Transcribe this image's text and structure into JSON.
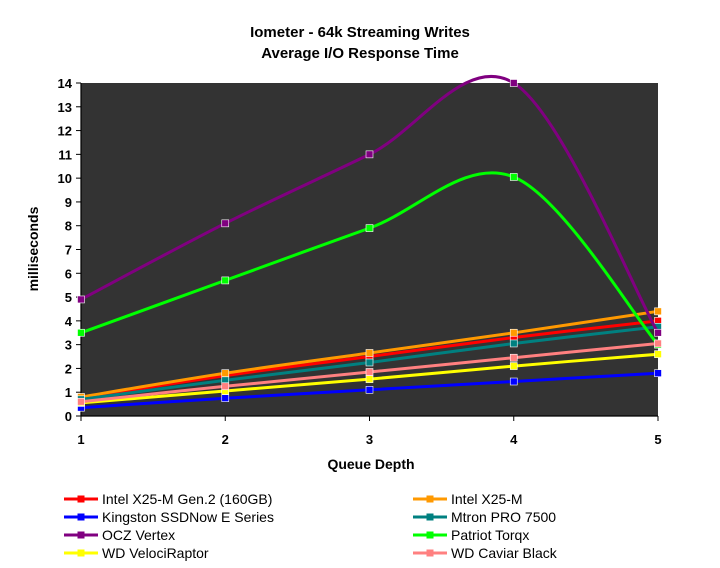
{
  "chart_data": {
    "type": "line",
    "title": "Iometer - 64k Streaming Writes",
    "subtitle": "Average I/O Response Time",
    "xlabel": "Queue Depth",
    "ylabel": "milliseconds",
    "x": [
      1,
      2,
      3,
      4,
      5
    ],
    "xticks": [
      "1",
      "2",
      "3",
      "4",
      "5"
    ],
    "ylim": [
      0,
      14
    ],
    "yticks": [
      "0",
      "1",
      "2",
      "3",
      "4",
      "5",
      "6",
      "7",
      "8",
      "9",
      "10",
      "11",
      "12",
      "13",
      "14"
    ],
    "grid": false,
    "legend_position": "bottom",
    "plot_background": "#333333",
    "series": [
      {
        "name": "Intel X25-M Gen.2 (160GB)",
        "color": "#ff0000",
        "values": [
          0.75,
          1.7,
          2.5,
          3.3,
          4.0
        ]
      },
      {
        "name": "Intel X25-M",
        "color": "#ff9900",
        "values": [
          0.8,
          1.8,
          2.65,
          3.5,
          4.4
        ]
      },
      {
        "name": "Kingston SSDNow E Series",
        "color": "#0000ff",
        "values": [
          0.35,
          0.75,
          1.1,
          1.45,
          1.8
        ]
      },
      {
        "name": "Mtron PRO 7500",
        "color": "#008080",
        "values": [
          0.7,
          1.5,
          2.25,
          3.05,
          3.75
        ]
      },
      {
        "name": "OCZ Vertex",
        "color": "#800080",
        "values": [
          4.9,
          8.1,
          11.0,
          14.0,
          3.5
        ]
      },
      {
        "name": "Patriot Torqx",
        "color": "#00ff00",
        "values": [
          3.5,
          5.7,
          7.9,
          10.05,
          3.0
        ]
      },
      {
        "name": "WD VelociRaptor",
        "color": "#ffff00",
        "values": [
          0.55,
          1.05,
          1.55,
          2.1,
          2.6
        ]
      },
      {
        "name": "WD Caviar Black",
        "color": "#ff8080",
        "values": [
          0.6,
          1.25,
          1.85,
          2.45,
          3.05
        ]
      }
    ]
  }
}
